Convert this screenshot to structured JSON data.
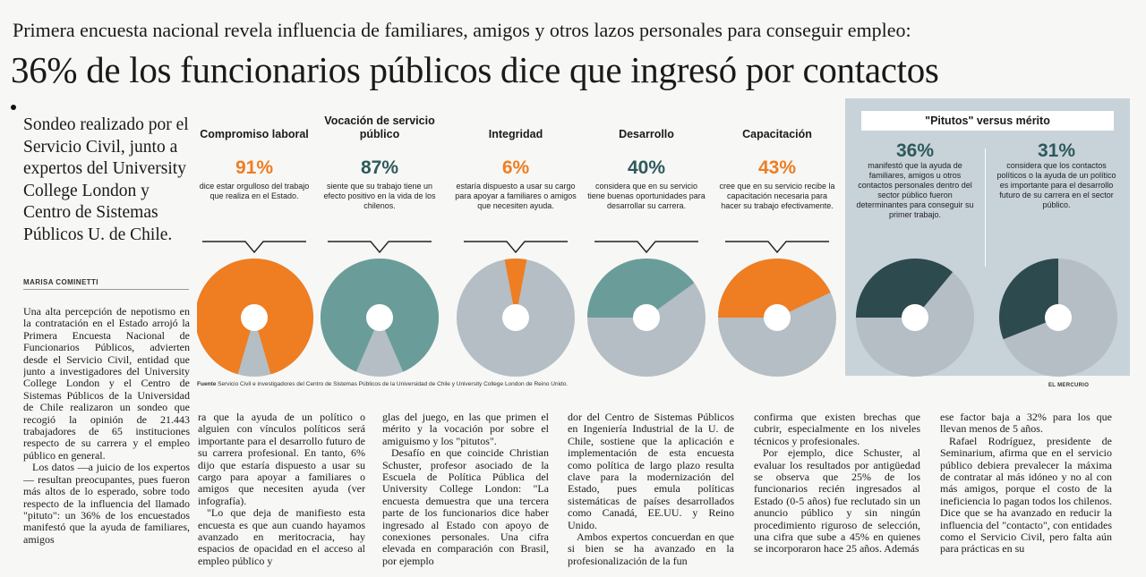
{
  "kicker": "Primera encuesta nacional revela influencia de familiares, amigos y otros lazos personales para conseguir empleo:",
  "headline": "36% de los funcionarios públicos dice que ingresó por contactos",
  "dek": "Sondeo realizado por el Servicio Civil, junto a expertos del University College London y Centro de Sistemas Públicos U. de Chile.",
  "byline": "MARISA COMINETTI",
  "colors": {
    "orange": "#ef7d22",
    "teal": "#6a9d99",
    "dark_teal": "#2d4a4e",
    "gray": "#b4bec4",
    "box": "#c8d2d9"
  },
  "graphic": {
    "panels": [
      {
        "title": "Compromiso laboral",
        "pct": "91%",
        "desc": "dice estar orgulloso del trabajo que realiza en el Estado.",
        "value": 91,
        "color": "#ef7d22"
      },
      {
        "title": "Vocación de servicio público",
        "pct": "87%",
        "desc": "siente que su trabajo tiene un efecto positivo en la vida de los chilenos.",
        "value": 87,
        "color": "#6a9d99"
      },
      {
        "title": "Integridad",
        "pct": "6%",
        "desc": "estaría dispuesto a usar su cargo para apoyar a familiares o amigos que necesiten ayuda.",
        "value": 6,
        "color": "#ef7d22"
      },
      {
        "title": "Desarrollo",
        "pct": "40%",
        "desc": "considera que en su servicio tiene buenas oportunidades para desarrollar su carrera.",
        "value": 40,
        "color": "#6a9d99"
      },
      {
        "title": "Capacitación",
        "pct": "43%",
        "desc": "cree que en su servicio recibe la capacitación necesaria para hacer su trabajo efectivamente.",
        "value": 43,
        "color": "#ef7d22"
      }
    ],
    "side": {
      "title": "\"Pitutos\" versus mérito",
      "left": {
        "pct": "36%",
        "desc": "manifestó que la ayuda de familiares, amigos u otros contactos personales dentro del sector público fueron determinantes para conseguir su primer trabajo.",
        "value": 36
      },
      "right": {
        "pct": "31%",
        "desc": "considera que los contactos políticos o la ayuda de un político es importante para el desarrollo futuro de su carrera en el sector público.",
        "value": 31
      }
    },
    "source_label": "Fuente",
    "source_text": "Servicio Civil e investigadores del Centro de Sistemas Públicos de la Universidad de Chile y University College London de Reino Unido.",
    "credit": "EL MERCURIO"
  },
  "body": {
    "col1": [
      "Una alta percepción de nepotismo en la contratación en el Estado arrojó la Primera Encuesta Nacional de Funcionarios Públicos, advierten desde el Servicio Civil, entidad que junto a investigadores del University College London y el Centro de Sistemas Públicos de la Universidad de Chile realizaron un sondeo que recogió la opinión de 21.443 trabajadores de 65 instituciones respecto de su carrera y el empleo público en general.",
      "Los datos —a juicio de los expertos— resultan preocupantes, pues fueron más altos de lo esperado, sobre todo respecto de la influencia del llamado \"pituto\": un 36% de los encuestados manifestó que la ayuda de familiares, amigos"
    ],
    "col2": [
      "ra que la ayuda de un político o alguien con vínculos políticos será importante para el desarrollo futuro de su carrera profesional. En tanto, 6% dijo que estaría dispuesto a usar su cargo para apoyar a familiares o amigos que necesiten ayuda (ver infografía).",
      "\"Lo que deja de manifiesto esta encuesta es que aun cuando hayamos avanzado en meritocracia, hay espacios de opacidad en el acceso al empleo público y"
    ],
    "col3": [
      "glas del juego, en las que primen el mérito y la vocación por sobre el amiguismo y los \"pitutos\".",
      "Desafío en que coincide Christian Schuster, profesor asociado de la Escuela de Política Pública del University College London: \"La encuesta demuestra que una tercera parte de los funcionarios dice haber ingresado al Estado con apoyo de conexiones personales. Una cifra elevada en comparación con Brasil, por ejemplo"
    ],
    "col4": [
      "dor del Centro de Sistemas Públicos en Ingeniería Industrial de la U. de Chile, sostiene que la aplicación e implementación de esta encuesta como política de largo plazo resulta clave para la modernización del Estado, pues emula políticas sistemáticas de países desarrollados como Canadá, EE.UU. y Reino Unido.",
      "Ambos expertos concuerdan en que si bien se ha avanzado en la profesionalización de la fun"
    ],
    "col5": [
      "confirma que existen brechas que cubrir, especialmente en los niveles técnicos y profesionales.",
      "Por ejemplo, dice Schuster, al evaluar los resultados por antigüedad se observa que 25% de los funcionarios recién ingresados al Estado (0-5 años) fue reclutado sin un anuncio público y sin ningún procedimiento riguroso de selección, una cifra que sube a 45% en quienes se incorporaron hace 25 años. Además"
    ],
    "col6": [
      "ese factor baja a 32% para los que llevan menos de 5 años.",
      "Rafael Rodríguez, presidente de Seminarium, afirma que en el servicio público debiera prevalecer la máxima de contratar al más idóneo y no al con más amigos, porque el costo de la ineficiencia lo pagan todos los chilenos. Dice que se ha avanzado en reducir la influencia del \"contacto\", con entidades como el Servicio Civil, pero falta aún para prácticas en su"
    ]
  }
}
